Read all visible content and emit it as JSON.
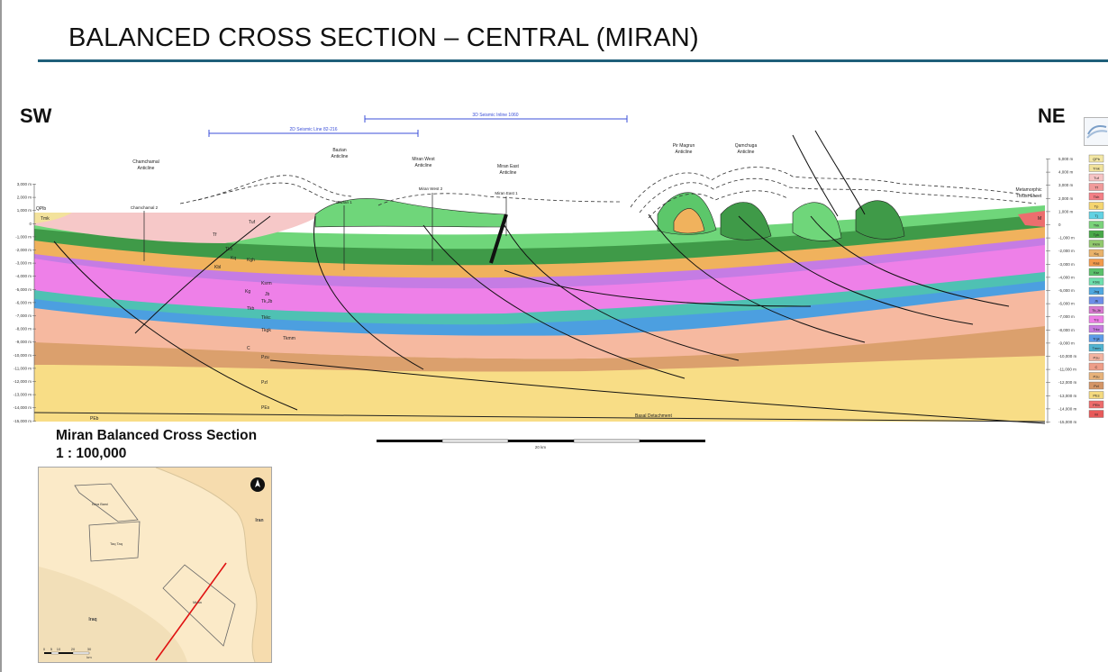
{
  "slide": {
    "title": "BALANCED CROSS SECTION – CENTRAL (MIRAN)",
    "direction_left": "SW",
    "direction_right": "NE",
    "caption_line1": "Miran Balanced Cross Section",
    "caption_line2": "1 : 100,000"
  },
  "seismic_lines": {
    "line_2d": "2D Seismic Line 82-216",
    "line_3d": "3D Seismic Inline 1060"
  },
  "anticlines": [
    {
      "line1": "Chamchamal",
      "line2": "Anticline"
    },
    {
      "line1": "Bazian",
      "line2": "Anticline"
    },
    {
      "line1": "Miran West",
      "line2": "Anticline"
    },
    {
      "line1": "Miran East",
      "line2": "Anticline"
    },
    {
      "line1": "Pir Magrun",
      "line2": "Anticline"
    },
    {
      "line1": "Qamchuga",
      "line2": "Anticline"
    }
  ],
  "thrust_sheet": {
    "line1": "Metamorphic",
    "line2": "Thrust Sheet"
  },
  "wells": [
    "Chamchamal 2",
    "Bazian 1",
    "Miran West 2",
    "Miran East 1"
  ],
  "depth_axis_left": [
    "3,000 m",
    "2,000 m",
    "1,000 m",
    "0",
    "-1,000 m",
    "-2,000 m",
    "-3,000 m",
    "-4,000 m",
    "-5,000 m",
    "-6,000 m",
    "-7,000 m",
    "-8,000 m",
    "-9,000 m",
    "-10,000 m",
    "-11,000 m",
    "-12,000 m",
    "-13,000 m",
    "-14,000 m",
    "-15,000 m"
  ],
  "depth_axis_right": [
    "5,000 m",
    "4,000 m",
    "3,000 m",
    "2,000 m",
    "1,000 m",
    "0",
    "-1,000 m",
    "-2,000 m",
    "-3,000 m",
    "-4,000 m",
    "-5,000 m",
    "-6,000 m",
    "-7,000 m",
    "-8,000 m",
    "-9,000 m",
    "-10,000 m",
    "-11,000 m",
    "-12,000 m",
    "-13,000 m",
    "-14,000 m",
    "-15,000 m"
  ],
  "unit_labels": [
    "Tmk",
    "Tuf",
    "Tf",
    "Tkh",
    "Kq",
    "Kgh",
    "Kbl",
    "Ksrm",
    "Kg",
    "Jb",
    "Tk,Jb",
    "Tkb",
    "Tkkc",
    "Tkgk",
    "Tkmm",
    "C",
    "Pzu",
    "Pzl",
    "PEs",
    "PEb",
    "M",
    "QPlb",
    "Basal Detachment"
  ],
  "legend": [
    {
      "code": "QPb",
      "color": "#f3e7a4"
    },
    {
      "code": "Tmk",
      "color": "#f1e29b"
    },
    {
      "code": "Tuf",
      "color": "#f6c4c4"
    },
    {
      "code": "Tf",
      "color": "#f09a9a"
    },
    {
      "code": "Tkh",
      "color": "#f47f86"
    },
    {
      "code": "Tp",
      "color": "#f5d56f"
    },
    {
      "code": "Tj",
      "color": "#62d2e3"
    },
    {
      "code": "Tkk",
      "color": "#7ad37a"
    },
    {
      "code": "Tpk",
      "color": "#48a848"
    },
    {
      "code": "Kkm",
      "color": "#92c96d"
    },
    {
      "code": "Kq",
      "color": "#e9b26b"
    },
    {
      "code": "Kas",
      "color": "#f39a4b"
    },
    {
      "code": "Ksr",
      "color": "#59c06a"
    },
    {
      "code": "Kbls",
      "color": "#6ee0ad"
    },
    {
      "code": "Jng",
      "color": "#4fa8e0"
    },
    {
      "code": "Jb",
      "color": "#6d8ee8"
    },
    {
      "code": "Tk,Jb",
      "color": "#d879cf"
    },
    {
      "code": "Trs",
      "color": "#ee7ee6"
    },
    {
      "code": "Trkc",
      "color": "#c77be0"
    },
    {
      "code": "Trgk",
      "color": "#5b9be8"
    },
    {
      "code": "Tmm",
      "color": "#4fb3d0"
    },
    {
      "code": "Pzu",
      "color": "#f2b3a0"
    },
    {
      "code": "C",
      "color": "#ee9d88"
    },
    {
      "code": "Pzu",
      "color": "#e7b27a"
    },
    {
      "code": "Pzl",
      "color": "#d49566"
    },
    {
      "code": "PEs",
      "color": "#f5da7f"
    },
    {
      "code": "PEb",
      "color": "#ee6c6c"
    },
    {
      "code": "M",
      "color": "#e85a5a"
    }
  ],
  "scale_bar": {
    "label": "20 km"
  },
  "inset_map": {
    "label_iran": "Iran",
    "label_iraq": "Iraq",
    "blocks": [
      "Bina Bawi",
      "Taq Taq",
      "Miran"
    ],
    "scale_ticks": [
      "0",
      "5",
      "10",
      "20",
      "30"
    ],
    "scale_unit": "km",
    "colors": {
      "land_iraq": "#fbeac8",
      "land_iran": "#f6dcae",
      "section_line": "#e01212"
    }
  },
  "colors": {
    "title_rule": "#1f5f7a",
    "seismic": "#3b4fd8"
  }
}
